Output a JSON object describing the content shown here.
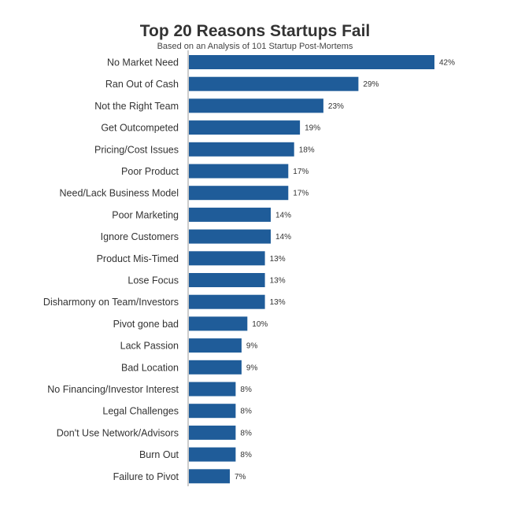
{
  "chart_data": {
    "type": "bar",
    "orientation": "horizontal",
    "title": "Top 20 Reasons Startups Fail",
    "subtitle": "Based on an Analysis of 101 Startup Post-Mortems",
    "categories": [
      "No Market Need",
      "Ran Out of Cash",
      "Not the Right Team",
      "Get Outcompeted",
      "Pricing/Cost Issues",
      "Poor Product",
      "Need/Lack Business Model",
      "Poor Marketing",
      "Ignore Customers",
      "Product Mis-Timed",
      "Lose Focus",
      "Disharmony on Team/Investors",
      "Pivot gone bad",
      "Lack Passion",
      "Bad Location",
      "No Financing/Investor Interest",
      "Legal Challenges",
      "Don't Use Network/Advisors",
      "Burn Out",
      "Failure to Pivot"
    ],
    "values": [
      42,
      29,
      23,
      19,
      18,
      17,
      17,
      14,
      14,
      13,
      13,
      13,
      10,
      9,
      9,
      8,
      8,
      8,
      8,
      7
    ],
    "value_labels": [
      "42%",
      "29%",
      "23%",
      "19%",
      "18%",
      "17%",
      "17%",
      "14%",
      "14%",
      "13%",
      "13%",
      "13%",
      "10%",
      "9%",
      "9%",
      "8%",
      "8%",
      "8%",
      "8%",
      "7%"
    ],
    "bar_color": "#1f5c99",
    "xlim": [
      0,
      42
    ],
    "grid": false,
    "legend": "none"
  }
}
